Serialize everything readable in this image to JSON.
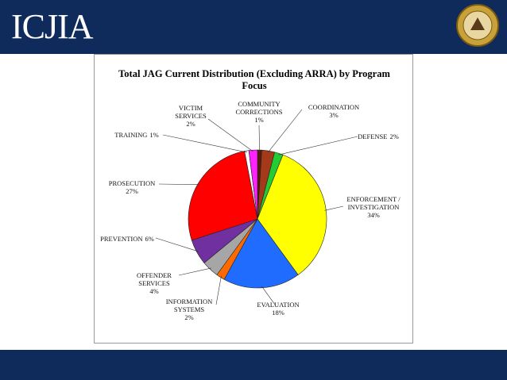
{
  "header": {
    "logo": "ICJIA"
  },
  "chart_data": {
    "type": "pie",
    "title": "Total JAG Current Distribution (Excluding ARRA) by Program Focus",
    "categories": [
      "COMMUNITY CORRECTIONS",
      "COORDINATION",
      "DEFENSE",
      "ENFORCEMENT / INVESTIGATION",
      "EVALUATION",
      "INFORMATION SYSTEMS",
      "OFFENDER SERVICES",
      "PREVENTION",
      "PROSECUTION",
      "TRAINING",
      "VICTIM SERVICES"
    ],
    "values": [
      1,
      3,
      2,
      34,
      18,
      2,
      4,
      6,
      27,
      1,
      2
    ],
    "value_labels": [
      "1%",
      "3%",
      "2%",
      "34%",
      "18%",
      "2%",
      "4%",
      "6%",
      "27%",
      "1%",
      "2%"
    ],
    "colors": [
      "#5a1a0a",
      "#a33a1a",
      "#22cc33",
      "#ffff00",
      "#1f6cff",
      "#ff6a00",
      "#a6a6a6",
      "#7030a0",
      "#ff0000",
      "#ffffff",
      "#ff22ff"
    ]
  }
}
